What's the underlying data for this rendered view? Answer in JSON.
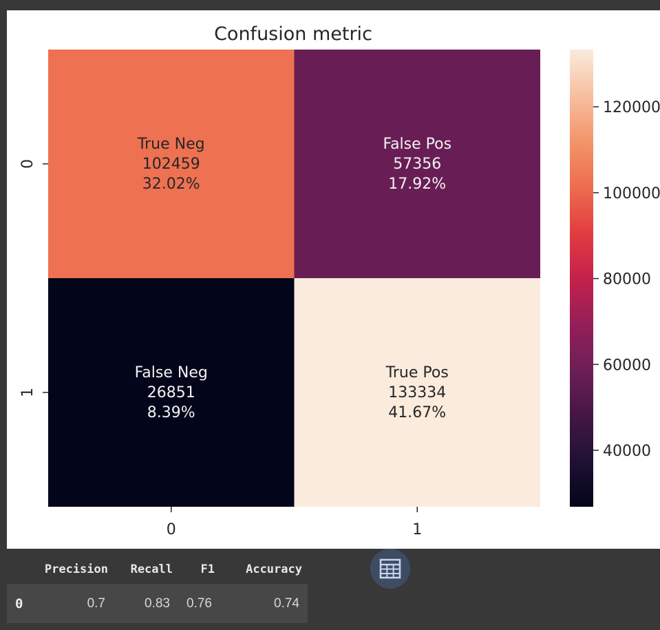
{
  "chart_data": {
    "type": "heatmap",
    "title": "Confusion metric",
    "xlabel": "",
    "ylabel": "",
    "x_tick_labels": [
      "0",
      "1"
    ],
    "y_tick_labels": [
      "0",
      "1"
    ],
    "cells": [
      {
        "row": 0,
        "col": 0,
        "name": "True Neg",
        "count": "102459",
        "percent": "32.02%",
        "value": 102459
      },
      {
        "row": 0,
        "col": 1,
        "name": "False Pos",
        "count": "57356",
        "percent": "17.92%",
        "value": 57356
      },
      {
        "row": 1,
        "col": 0,
        "name": "False Neg",
        "count": "26851",
        "percent": "8.39%",
        "value": 26851
      },
      {
        "row": 1,
        "col": 1,
        "name": "True Pos",
        "count": "133334",
        "percent": "41.67%",
        "value": 133334
      }
    ],
    "colorbar": {
      "vmin": 26851,
      "vmax": 133334,
      "ticks": [
        40000,
        60000,
        80000,
        100000,
        120000
      ],
      "tick_labels": [
        "40000",
        "60000",
        "80000",
        "100000",
        "120000"
      ]
    },
    "colormap": "rocket",
    "grid": false
  },
  "metrics_table": {
    "columns": [
      "",
      "Precision",
      "Recall",
      "F1",
      "Accuracy"
    ],
    "rows": [
      {
        "index": "0",
        "values": [
          "0.7",
          "0.83",
          "0.76",
          "0.74"
        ]
      }
    ]
  },
  "table_button": {
    "icon": "table-icon",
    "color": "#3e4c63"
  }
}
